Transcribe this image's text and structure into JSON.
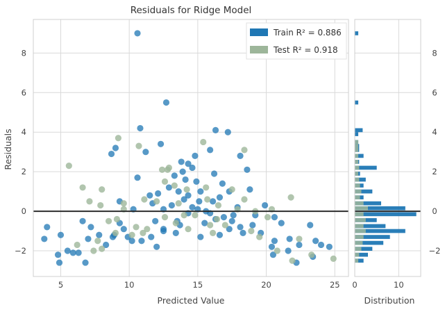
{
  "chart_data": {
    "type": "scatter",
    "title": "Residuals for Ridge Model",
    "xlabel": "Predicted Value",
    "ylabel": "Residuals",
    "xlim": [
      3,
      26
    ],
    "ylim": [
      -3.3,
      9.7
    ],
    "xticks": [
      "5",
      "10",
      "15",
      "20",
      "25"
    ],
    "yticks": [
      "-2",
      "0",
      "2",
      "4",
      "6",
      "8"
    ],
    "grid": true,
    "legend": "top-right",
    "zero_line": 0,
    "series": [
      {
        "name": "Train",
        "legend_label": "Train R² = 0.886",
        "r2_label": "0.886",
        "color": "#1f77b4",
        "points": [
          [
            10.6,
            9.0
          ],
          [
            12.7,
            5.5
          ],
          [
            10.8,
            4.2
          ],
          [
            16.3,
            4.1
          ],
          [
            17.2,
            4.0
          ],
          [
            9.0,
            3.2
          ],
          [
            8.7,
            2.9
          ],
          [
            11.2,
            3.0
          ],
          [
            12.3,
            3.4
          ],
          [
            14.8,
            2.8
          ],
          [
            15.9,
            3.1
          ],
          [
            18.1,
            2.8
          ],
          [
            13.8,
            2.5
          ],
          [
            14.3,
            2.4
          ],
          [
            14.6,
            2.2
          ],
          [
            18.6,
            2.1
          ],
          [
            16.2,
            1.9
          ],
          [
            13.3,
            1.8
          ],
          [
            14.1,
            1.6
          ],
          [
            14.9,
            1.5
          ],
          [
            16.8,
            1.4
          ],
          [
            10.6,
            1.7
          ],
          [
            12.9,
            1.2
          ],
          [
            13.6,
            1.0
          ],
          [
            15.2,
            1.0
          ],
          [
            17.3,
            1.0
          ],
          [
            11.5,
            0.8
          ],
          [
            12.1,
            0.9
          ],
          [
            14.3,
            0.8
          ],
          [
            18.8,
            1.1
          ],
          [
            9.3,
            0.5
          ],
          [
            11.7,
            0.4
          ],
          [
            13.1,
            0.3
          ],
          [
            14.0,
            0.6
          ],
          [
            15.1,
            0.5
          ],
          [
            16.1,
            0.5
          ],
          [
            17.9,
            0.2
          ],
          [
            19.9,
            0.3
          ],
          [
            15.0,
            0.1
          ],
          [
            15.9,
            -0.1
          ],
          [
            12.5,
            0.1
          ],
          [
            10.3,
            0.1
          ],
          [
            16.3,
            -0.4
          ],
          [
            17.6,
            -0.2
          ],
          [
            19.2,
            -0.2
          ],
          [
            20.6,
            -0.3
          ],
          [
            21.1,
            -0.6
          ],
          [
            18.1,
            -0.8
          ],
          [
            13.5,
            -0.5
          ],
          [
            11.9,
            -0.5
          ],
          [
            9.3,
            -0.6
          ],
          [
            7.2,
            -0.8
          ],
          [
            6.6,
            -0.5
          ],
          [
            4.0,
            -0.8
          ],
          [
            5.0,
            -1.2
          ],
          [
            3.8,
            -1.4
          ],
          [
            7.8,
            -1.2
          ],
          [
            8.9,
            -1.2
          ],
          [
            9.9,
            -1.3
          ],
          [
            10.9,
            -1.5
          ],
          [
            11.6,
            -1.3
          ],
          [
            13.4,
            -1.1
          ],
          [
            15.2,
            -1.3
          ],
          [
            16.6,
            -1.2
          ],
          [
            17.3,
            -0.9
          ],
          [
            18.3,
            -1.1
          ],
          [
            19.6,
            -1.1
          ],
          [
            20.6,
            -1.5
          ],
          [
            21.7,
            -1.4
          ],
          [
            23.2,
            -0.7
          ],
          [
            23.6,
            -1.5
          ],
          [
            24.6,
            -1.8
          ],
          [
            24.0,
            -1.7
          ],
          [
            22.4,
            -1.7
          ],
          [
            20.4,
            -1.8
          ],
          [
            21.6,
            -2.0
          ],
          [
            20.5,
            -2.2
          ],
          [
            23.4,
            -2.3
          ],
          [
            22.2,
            -2.6
          ],
          [
            4.8,
            -2.2
          ],
          [
            5.5,
            -2.0
          ],
          [
            4.9,
            -2.6
          ],
          [
            6.3,
            -2.1
          ],
          [
            6.8,
            -2.6
          ],
          [
            7.0,
            -1.4
          ],
          [
            5.9,
            -2.1
          ],
          [
            8.8,
            -1.3
          ],
          [
            10.2,
            -1.5
          ],
          [
            12.5,
            -1.0
          ],
          [
            13.7,
            -0.7
          ],
          [
            16.9,
            -0.3
          ],
          [
            19.0,
            -0.7
          ],
          [
            15.6,
            0.0
          ],
          [
            14.3,
            -0.1
          ],
          [
            9.6,
            -0.9
          ],
          [
            8.3,
            -1.7
          ],
          [
            12.0,
            -1.8
          ],
          [
            12.5,
            -0.9
          ],
          [
            17.5,
            -0.5
          ],
          [
            15.5,
            -0.6
          ],
          [
            13.9,
            2.0
          ],
          [
            14.6,
            0.2
          ],
          [
            16.6,
            0.7
          ]
        ]
      },
      {
        "name": "Test",
        "legend_label": "Test R² = 0.918",
        "r2_label": "0.918",
        "color": "#9db69a",
        "points": [
          [
            9.2,
            3.7
          ],
          [
            10.7,
            3.3
          ],
          [
            5.6,
            2.3
          ],
          [
            12.8,
            2.1
          ],
          [
            15.4,
            3.5
          ],
          [
            18.4,
            3.1
          ],
          [
            12.6,
            1.5
          ],
          [
            13.3,
            1.3
          ],
          [
            15.6,
            1.2
          ],
          [
            17.5,
            1.1
          ],
          [
            6.6,
            1.2
          ],
          [
            8.0,
            1.1
          ],
          [
            12.9,
            2.2
          ],
          [
            7.1,
            0.5
          ],
          [
            7.9,
            0.3
          ],
          [
            9.6,
            0.4
          ],
          [
            12.0,
            0.5
          ],
          [
            16.5,
            0.3
          ],
          [
            17.9,
            0.1
          ],
          [
            20.4,
            0.1
          ],
          [
            21.8,
            0.7
          ],
          [
            14.8,
            -0.2
          ],
          [
            15.7,
            0.6
          ],
          [
            18.4,
            0.6
          ],
          [
            19.2,
            0.0
          ],
          [
            20.1,
            -0.3
          ],
          [
            8.5,
            -0.5
          ],
          [
            9.1,
            -0.4
          ],
          [
            10.5,
            -0.8
          ],
          [
            11.3,
            -0.9
          ],
          [
            13.4,
            -0.6
          ],
          [
            14.0,
            -0.2
          ],
          [
            17.0,
            -0.7
          ],
          [
            18.9,
            -1.0
          ],
          [
            19.5,
            -1.3
          ],
          [
            22.4,
            -1.4
          ],
          [
            23.3,
            -2.2
          ],
          [
            24.9,
            -2.4
          ],
          [
            21.9,
            -2.5
          ],
          [
            20.8,
            -2.0
          ],
          [
            7.7,
            -1.5
          ],
          [
            8.0,
            -1.9
          ],
          [
            9.0,
            -1.1
          ],
          [
            10.2,
            -1.2
          ],
          [
            11.0,
            -1.1
          ],
          [
            12.6,
            -0.3
          ],
          [
            14.3,
            -0.9
          ],
          [
            16.1,
            -1.1
          ],
          [
            6.2,
            -1.7
          ],
          [
            7.4,
            -2.0
          ],
          [
            9.6,
            0.1
          ],
          [
            11.1,
            0.6
          ],
          [
            13.6,
            0.4
          ],
          [
            16.4,
            -0.4
          ],
          [
            15.9,
            -0.7
          ],
          [
            12.4,
            2.1
          ],
          [
            14.2,
            1.1
          ]
        ]
      }
    ],
    "distribution": {
      "xlabel": "Distribution",
      "xlim": [
        0,
        15
      ],
      "xticks": [
        "0",
        "10"
      ],
      "bars": [
        {
          "y0": 8.9,
          "y1": 9.1,
          "train": 0.8,
          "test": 0
        },
        {
          "y0": 5.4,
          "y1": 5.6,
          "train": 0.8,
          "test": 0
        },
        {
          "y0": 4.0,
          "y1": 4.2,
          "train": 1.8,
          "test": 0
        },
        {
          "y0": 3.8,
          "y1": 4.0,
          "train": 0.8,
          "test": 0
        },
        {
          "y0": 3.4,
          "y1": 3.6,
          "train": 0.8,
          "test": 0.8
        },
        {
          "y0": 3.2,
          "y1": 3.4,
          "train": 1.0,
          "test": 0.8
        },
        {
          "y0": 3.0,
          "y1": 3.2,
          "train": 1.0,
          "test": 0.8
        },
        {
          "y0": 2.7,
          "y1": 2.9,
          "train": 2.0,
          "test": 0.8
        },
        {
          "y0": 2.4,
          "y1": 2.6,
          "train": 1.0,
          "test": 0.8
        },
        {
          "y0": 2.1,
          "y1": 2.3,
          "train": 5.0,
          "test": 1.0
        },
        {
          "y0": 1.8,
          "y1": 2.0,
          "train": 1.2,
          "test": 0.8
        },
        {
          "y0": 1.5,
          "y1": 1.7,
          "train": 2.5,
          "test": 1.0
        },
        {
          "y0": 1.2,
          "y1": 1.4,
          "train": 2.0,
          "test": 1.2
        },
        {
          "y0": 0.9,
          "y1": 1.1,
          "train": 4.0,
          "test": 1.5
        },
        {
          "y0": 0.6,
          "y1": 0.8,
          "train": 2.0,
          "test": 1.2
        },
        {
          "y0": 0.3,
          "y1": 0.5,
          "train": 6.0,
          "test": 2.0
        },
        {
          "y0": 0.05,
          "y1": 0.25,
          "train": 11.5,
          "test": 3.0
        },
        {
          "y0": -0.25,
          "y1": -0.05,
          "train": 14.0,
          "test": 2.0
        },
        {
          "y0": -0.55,
          "y1": -0.35,
          "train": 5.0,
          "test": 2.5
        },
        {
          "y0": -0.85,
          "y1": -0.65,
          "train": 7.0,
          "test": 2.0
        },
        {
          "y0": -1.1,
          "y1": -0.9,
          "train": 11.5,
          "test": 2.5
        },
        {
          "y0": -1.4,
          "y1": -1.2,
          "train": 8.0,
          "test": 2.0
        },
        {
          "y0": -1.7,
          "y1": -1.5,
          "train": 6.5,
          "test": 1.8
        },
        {
          "y0": -2.0,
          "y1": -1.8,
          "train": 4.0,
          "test": 1.5
        },
        {
          "y0": -2.3,
          "y1": -2.1,
          "train": 3.0,
          "test": 1.0
        },
        {
          "y0": -2.6,
          "y1": -2.4,
          "train": 2.0,
          "test": 0.8
        }
      ]
    }
  }
}
